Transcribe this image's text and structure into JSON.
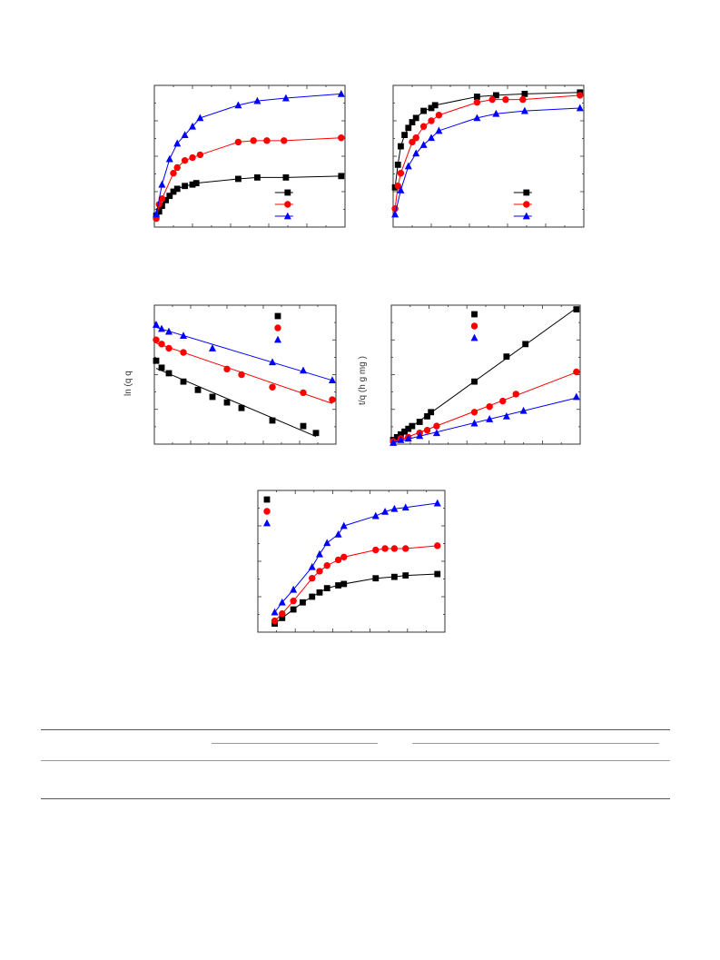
{
  "colors": {
    "black": "#000000",
    "red": "#ff0000",
    "blue": "#0000ff",
    "axis": "#333333",
    "rule": "#555555"
  },
  "chart_data": [
    {
      "id": "panel-a",
      "type": "line",
      "title": "",
      "xlabel": "",
      "ylabel": "",
      "xlim": [
        0,
        10
      ],
      "ylim": [
        0,
        10
      ],
      "legend": "bottom-right",
      "markers": true,
      "fit_lines": true,
      "series": [
        {
          "name": "",
          "color": "#000000",
          "marker": "square",
          "x": [
            0.1,
            0.25,
            0.4,
            0.6,
            0.8,
            1.0,
            1.2,
            1.6,
            2.0,
            2.2,
            4.4,
            5.4,
            6.9,
            9.8
          ],
          "y": [
            0.8,
            1.1,
            1.5,
            1.9,
            2.2,
            2.5,
            2.7,
            2.9,
            3.0,
            3.1,
            3.4,
            3.5,
            3.5,
            3.6
          ]
        },
        {
          "name": "",
          "color": "#ff0000",
          "marker": "circle",
          "x": [
            0.1,
            0.25,
            0.4,
            1.0,
            1.2,
            1.6,
            2.0,
            2.4,
            4.4,
            5.2,
            5.9,
            6.8,
            9.8
          ],
          "y": [
            0.6,
            1.6,
            2.0,
            3.8,
            4.2,
            4.7,
            4.9,
            5.1,
            6.0,
            6.1,
            6.1,
            6.1,
            6.3
          ]
        },
        {
          "name": "",
          "color": "#0000ff",
          "marker": "triangle",
          "x": [
            0.1,
            0.4,
            0.8,
            1.2,
            1.6,
            2.0,
            2.4,
            4.4,
            5.4,
            6.9,
            9.8
          ],
          "y": [
            0.9,
            3.0,
            4.8,
            5.9,
            6.5,
            7.1,
            7.7,
            8.6,
            8.9,
            9.1,
            9.4
          ]
        }
      ]
    },
    {
      "id": "panel-b",
      "type": "line",
      "title": "",
      "xlabel": "",
      "ylabel": "",
      "xlim": [
        0,
        10
      ],
      "ylim": [
        0,
        10
      ],
      "legend": "bottom-right",
      "markers": true,
      "fit_lines": true,
      "series": [
        {
          "name": "",
          "color": "#000000",
          "marker": "square",
          "x": [
            0.1,
            0.25,
            0.4,
            0.6,
            0.8,
            1.0,
            1.2,
            1.6,
            2.0,
            2.2,
            4.4,
            5.4,
            6.9,
            9.8
          ],
          "y": [
            2.8,
            4.4,
            5.7,
            6.5,
            7.0,
            7.4,
            7.7,
            8.2,
            8.4,
            8.6,
            9.2,
            9.3,
            9.4,
            9.5
          ]
        },
        {
          "name": "",
          "color": "#ff0000",
          "marker": "circle",
          "x": [
            0.1,
            0.25,
            0.4,
            1.0,
            1.2,
            1.6,
            2.0,
            2.4,
            4.4,
            5.2,
            5.9,
            6.8,
            9.8
          ],
          "y": [
            1.3,
            2.9,
            3.8,
            6.0,
            6.3,
            7.1,
            7.5,
            7.9,
            8.8,
            9.0,
            9.0,
            9.0,
            9.3
          ]
        },
        {
          "name": "",
          "color": "#0000ff",
          "marker": "triangle",
          "x": [
            0.1,
            0.4,
            0.8,
            1.2,
            1.6,
            2.0,
            2.4,
            4.4,
            5.4,
            6.9,
            9.8
          ],
          "y": [
            0.9,
            2.6,
            4.3,
            5.2,
            5.8,
            6.3,
            6.8,
            7.7,
            8.0,
            8.2,
            8.4
          ]
        }
      ]
    },
    {
      "id": "panel-c",
      "type": "scatter",
      "title": "",
      "xlabel": "",
      "ylabel": "ln (q q",
      "xlim": [
        0,
        10
      ],
      "ylim": [
        0,
        10
      ],
      "legend": "top-right",
      "markers": true,
      "fit_lines": true,
      "series": [
        {
          "name": "",
          "color": "#000000",
          "marker": "square",
          "x": [
            0.1,
            0.4,
            0.8,
            1.6,
            2.4,
            3.2,
            4.0,
            4.8,
            6.5,
            8.2,
            8.9
          ],
          "y": [
            6.0,
            5.5,
            5.1,
            4.5,
            3.9,
            3.4,
            3.0,
            2.6,
            1.7,
            1.3,
            0.8
          ]
        },
        {
          "name": "",
          "color": "#ff0000",
          "marker": "circle",
          "x": [
            0.1,
            0.4,
            0.8,
            1.6,
            4.0,
            4.8,
            6.5,
            8.2,
            9.8
          ],
          "y": [
            7.5,
            7.2,
            6.9,
            6.6,
            5.4,
            5.0,
            4.1,
            3.7,
            3.2
          ]
        },
        {
          "name": "",
          "color": "#0000ff",
          "marker": "triangle",
          "x": [
            0.1,
            0.4,
            0.8,
            1.6,
            3.2,
            6.5,
            8.2,
            9.8
          ],
          "y": [
            8.6,
            8.3,
            8.1,
            7.8,
            6.9,
            5.9,
            5.3,
            4.6
          ]
        }
      ]
    },
    {
      "id": "panel-d",
      "type": "scatter",
      "title": "",
      "xlabel": "",
      "ylabel": "t/q (h g mg )",
      "xlim": [
        0,
        10
      ],
      "ylim": [
        0,
        10
      ],
      "legend": "top-left",
      "markers": true,
      "fit_lines": true,
      "series": [
        {
          "name": "",
          "color": "#000000",
          "marker": "square",
          "x": [
            0.1,
            0.3,
            0.5,
            0.7,
            0.9,
            1.1,
            1.5,
            1.9,
            2.1,
            4.4,
            6.1,
            7.1,
            9.8
          ],
          "y": [
            0.3,
            0.5,
            0.7,
            0.9,
            1.1,
            1.3,
            1.6,
            2.0,
            2.3,
            4.5,
            6.3,
            7.2,
            9.7
          ]
        },
        {
          "name": "",
          "color": "#ff0000",
          "marker": "circle",
          "x": [
            0.1,
            0.5,
            0.9,
            1.5,
            1.9,
            2.4,
            4.4,
            5.2,
            5.9,
            6.6,
            9.8
          ],
          "y": [
            0.2,
            0.4,
            0.5,
            0.8,
            1.0,
            1.3,
            2.3,
            2.7,
            3.1,
            3.6,
            5.2
          ]
        },
        {
          "name": "",
          "color": "#0000ff",
          "marker": "triangle",
          "x": [
            0.1,
            0.5,
            0.9,
            1.5,
            2.4,
            4.4,
            5.2,
            6.1,
            7.0,
            9.8
          ],
          "y": [
            0.1,
            0.3,
            0.4,
            0.6,
            0.8,
            1.5,
            1.8,
            2.0,
            2.4,
            3.4
          ]
        }
      ]
    },
    {
      "id": "panel-e",
      "type": "line",
      "title": "",
      "xlabel": "",
      "ylabel": "",
      "xlim": [
        0,
        10
      ],
      "ylim": [
        0,
        10
      ],
      "legend": "top-left",
      "markers": true,
      "fit_lines": true,
      "series": [
        {
          "name": "",
          "color": "#000000",
          "marker": "square",
          "x": [
            0.9,
            1.3,
            1.9,
            2.4,
            2.9,
            3.3,
            3.7,
            4.3,
            4.6,
            6.3,
            7.3,
            7.9,
            9.6
          ],
          "y": [
            0.6,
            1.0,
            1.6,
            2.1,
            2.5,
            2.8,
            3.1,
            3.3,
            3.4,
            3.8,
            3.9,
            4.0,
            4.1
          ]
        },
        {
          "name": "",
          "color": "#ff0000",
          "marker": "circle",
          "x": [
            0.9,
            1.3,
            1.9,
            2.9,
            3.3,
            3.7,
            4.3,
            4.6,
            6.3,
            6.8,
            7.3,
            7.9,
            9.6
          ],
          "y": [
            0.8,
            1.3,
            2.2,
            3.8,
            4.3,
            4.7,
            5.1,
            5.3,
            5.8,
            5.9,
            5.9,
            5.9,
            6.1
          ]
        },
        {
          "name": "",
          "color": "#0000ff",
          "marker": "triangle",
          "x": [
            0.9,
            1.3,
            1.9,
            2.9,
            3.3,
            3.7,
            4.3,
            4.6,
            6.3,
            6.8,
            7.3,
            7.9,
            9.6
          ],
          "y": [
            1.4,
            2.1,
            3.0,
            4.6,
            5.5,
            6.3,
            6.9,
            7.5,
            8.2,
            8.5,
            8.7,
            8.8,
            9.1
          ]
        }
      ]
    }
  ]
}
